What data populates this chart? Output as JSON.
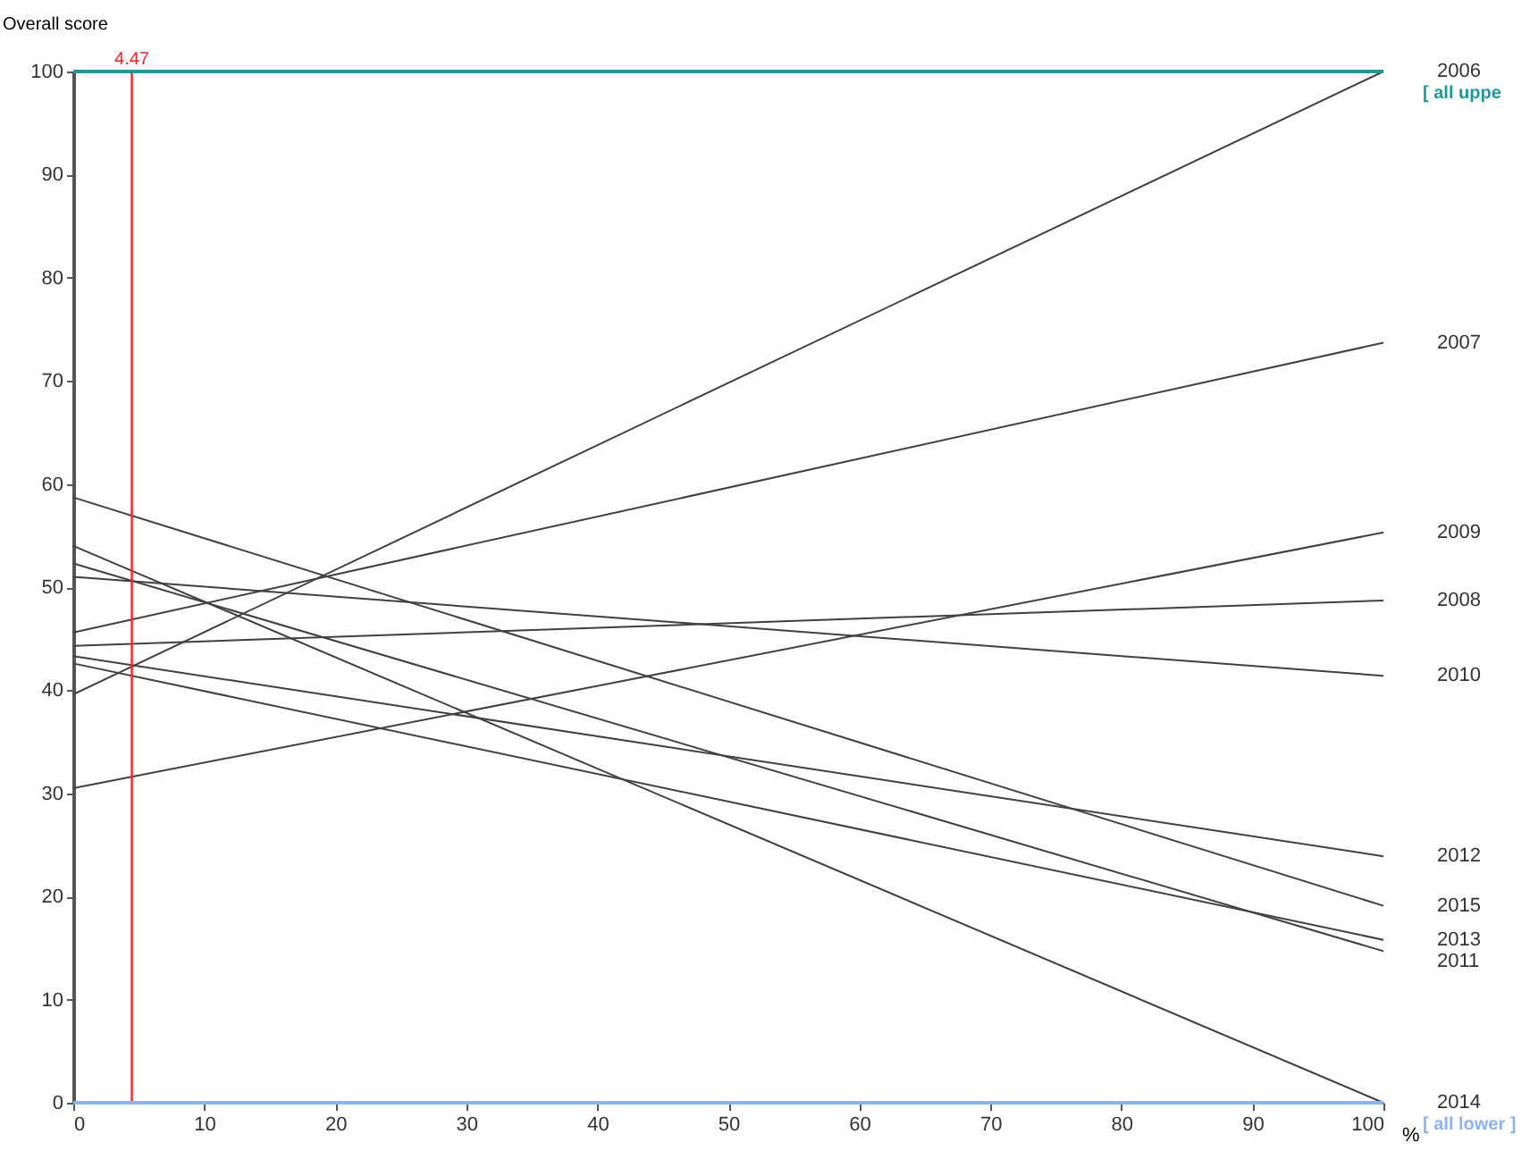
{
  "chart_data": {
    "type": "line",
    "ylabel": "Overall score",
    "xlabel": "%",
    "x": [
      0,
      100
    ],
    "xlim": [
      0,
      100
    ],
    "xticks": [
      0,
      10,
      20,
      30,
      40,
      50,
      60,
      70,
      80,
      90,
      100
    ],
    "ylim": [
      0,
      100
    ],
    "yticks": [
      0,
      10,
      20,
      30,
      40,
      50,
      60,
      70,
      80,
      90,
      100
    ],
    "grid": false,
    "marker": "none",
    "line_style": "solid",
    "series": [
      {
        "name": "2006",
        "color": "#404040",
        "values": [
          39.6,
          100
        ]
      },
      {
        "name": "2007",
        "color": "#404040",
        "values": [
          45.6,
          73.7
        ]
      },
      {
        "name": "2009",
        "color": "#404040",
        "values": [
          30.5,
          55.3
        ]
      },
      {
        "name": "2008",
        "color": "#404040",
        "values": [
          44.3,
          48.7
        ]
      },
      {
        "name": "2010",
        "color": "#404040",
        "values": [
          51.0,
          41.4
        ]
      },
      {
        "name": "2012",
        "color": "#404040",
        "values": [
          43.3,
          23.9
        ]
      },
      {
        "name": "2015",
        "color": "#404040",
        "values": [
          58.7,
          19.1
        ]
      },
      {
        "name": "2013",
        "color": "#404040",
        "values": [
          42.6,
          15.8
        ]
      },
      {
        "name": "2011",
        "color": "#404040",
        "values": [
          52.3,
          14.7
        ]
      },
      {
        "name": "2014",
        "color": "#404040",
        "values": [
          54.0,
          0
        ]
      }
    ],
    "ref_lines": [
      {
        "axis": "x",
        "value": 4.47,
        "label": "4.47",
        "color": "#ff2020"
      },
      {
        "axis": "y",
        "value": 100,
        "label": "[ all uppe",
        "color": "#1a9a9a"
      },
      {
        "axis": "y",
        "value": 0,
        "label": "[ all lower ]",
        "color": "#8ab4f8"
      }
    ]
  }
}
